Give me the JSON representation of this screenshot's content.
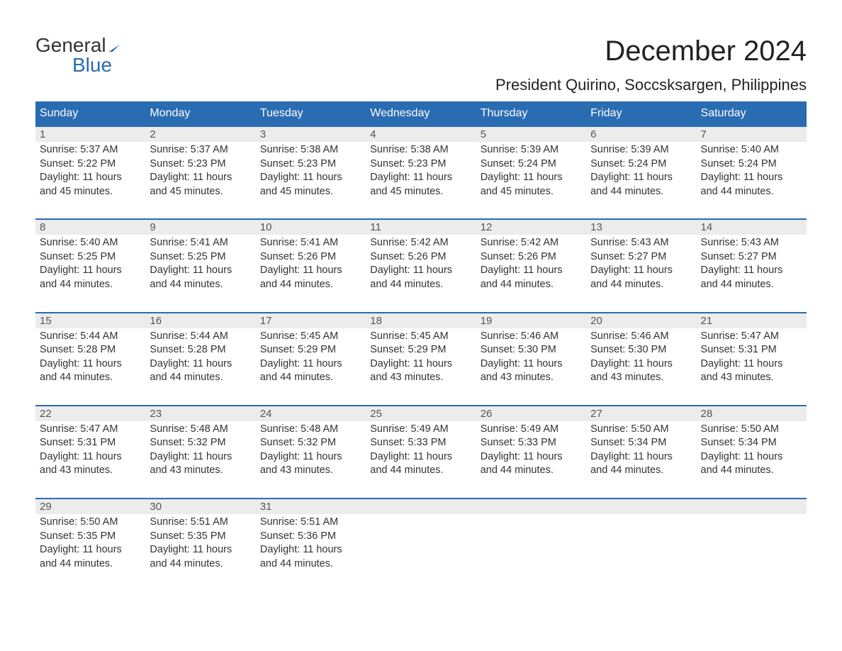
{
  "brand": {
    "word1": "General",
    "word2": "Blue"
  },
  "title": "December 2024",
  "location": "President Quirino, Soccsksargen, Philippines",
  "colors": {
    "header_bg": "#2a6cb2",
    "header_text": "#ffffff",
    "daynum_bg": "#ececec",
    "row_border": "#2a6cb2",
    "body_text": "#333333",
    "page_bg": "#ffffff"
  },
  "weekdays": [
    "Sunday",
    "Monday",
    "Tuesday",
    "Wednesday",
    "Thursday",
    "Friday",
    "Saturday"
  ],
  "weeks": [
    [
      {
        "day": "1",
        "sunrise": "5:37 AM",
        "sunset": "5:22 PM",
        "daylight": "11 hours and 45 minutes."
      },
      {
        "day": "2",
        "sunrise": "5:37 AM",
        "sunset": "5:23 PM",
        "daylight": "11 hours and 45 minutes."
      },
      {
        "day": "3",
        "sunrise": "5:38 AM",
        "sunset": "5:23 PM",
        "daylight": "11 hours and 45 minutes."
      },
      {
        "day": "4",
        "sunrise": "5:38 AM",
        "sunset": "5:23 PM",
        "daylight": "11 hours and 45 minutes."
      },
      {
        "day": "5",
        "sunrise": "5:39 AM",
        "sunset": "5:24 PM",
        "daylight": "11 hours and 45 minutes."
      },
      {
        "day": "6",
        "sunrise": "5:39 AM",
        "sunset": "5:24 PM",
        "daylight": "11 hours and 44 minutes."
      },
      {
        "day": "7",
        "sunrise": "5:40 AM",
        "sunset": "5:24 PM",
        "daylight": "11 hours and 44 minutes."
      }
    ],
    [
      {
        "day": "8",
        "sunrise": "5:40 AM",
        "sunset": "5:25 PM",
        "daylight": "11 hours and 44 minutes."
      },
      {
        "day": "9",
        "sunrise": "5:41 AM",
        "sunset": "5:25 PM",
        "daylight": "11 hours and 44 minutes."
      },
      {
        "day": "10",
        "sunrise": "5:41 AM",
        "sunset": "5:26 PM",
        "daylight": "11 hours and 44 minutes."
      },
      {
        "day": "11",
        "sunrise": "5:42 AM",
        "sunset": "5:26 PM",
        "daylight": "11 hours and 44 minutes."
      },
      {
        "day": "12",
        "sunrise": "5:42 AM",
        "sunset": "5:26 PM",
        "daylight": "11 hours and 44 minutes."
      },
      {
        "day": "13",
        "sunrise": "5:43 AM",
        "sunset": "5:27 PM",
        "daylight": "11 hours and 44 minutes."
      },
      {
        "day": "14",
        "sunrise": "5:43 AM",
        "sunset": "5:27 PM",
        "daylight": "11 hours and 44 minutes."
      }
    ],
    [
      {
        "day": "15",
        "sunrise": "5:44 AM",
        "sunset": "5:28 PM",
        "daylight": "11 hours and 44 minutes."
      },
      {
        "day": "16",
        "sunrise": "5:44 AM",
        "sunset": "5:28 PM",
        "daylight": "11 hours and 44 minutes."
      },
      {
        "day": "17",
        "sunrise": "5:45 AM",
        "sunset": "5:29 PM",
        "daylight": "11 hours and 44 minutes."
      },
      {
        "day": "18",
        "sunrise": "5:45 AM",
        "sunset": "5:29 PM",
        "daylight": "11 hours and 43 minutes."
      },
      {
        "day": "19",
        "sunrise": "5:46 AM",
        "sunset": "5:30 PM",
        "daylight": "11 hours and 43 minutes."
      },
      {
        "day": "20",
        "sunrise": "5:46 AM",
        "sunset": "5:30 PM",
        "daylight": "11 hours and 43 minutes."
      },
      {
        "day": "21",
        "sunrise": "5:47 AM",
        "sunset": "5:31 PM",
        "daylight": "11 hours and 43 minutes."
      }
    ],
    [
      {
        "day": "22",
        "sunrise": "5:47 AM",
        "sunset": "5:31 PM",
        "daylight": "11 hours and 43 minutes."
      },
      {
        "day": "23",
        "sunrise": "5:48 AM",
        "sunset": "5:32 PM",
        "daylight": "11 hours and 43 minutes."
      },
      {
        "day": "24",
        "sunrise": "5:48 AM",
        "sunset": "5:32 PM",
        "daylight": "11 hours and 43 minutes."
      },
      {
        "day": "25",
        "sunrise": "5:49 AM",
        "sunset": "5:33 PM",
        "daylight": "11 hours and 44 minutes."
      },
      {
        "day": "26",
        "sunrise": "5:49 AM",
        "sunset": "5:33 PM",
        "daylight": "11 hours and 44 minutes."
      },
      {
        "day": "27",
        "sunrise": "5:50 AM",
        "sunset": "5:34 PM",
        "daylight": "11 hours and 44 minutes."
      },
      {
        "day": "28",
        "sunrise": "5:50 AM",
        "sunset": "5:34 PM",
        "daylight": "11 hours and 44 minutes."
      }
    ],
    [
      {
        "day": "29",
        "sunrise": "5:50 AM",
        "sunset": "5:35 PM",
        "daylight": "11 hours and 44 minutes."
      },
      {
        "day": "30",
        "sunrise": "5:51 AM",
        "sunset": "5:35 PM",
        "daylight": "11 hours and 44 minutes."
      },
      {
        "day": "31",
        "sunrise": "5:51 AM",
        "sunset": "5:36 PM",
        "daylight": "11 hours and 44 minutes."
      },
      null,
      null,
      null,
      null
    ]
  ],
  "labels": {
    "sunrise": "Sunrise:",
    "sunset": "Sunset:",
    "daylight": "Daylight:"
  }
}
